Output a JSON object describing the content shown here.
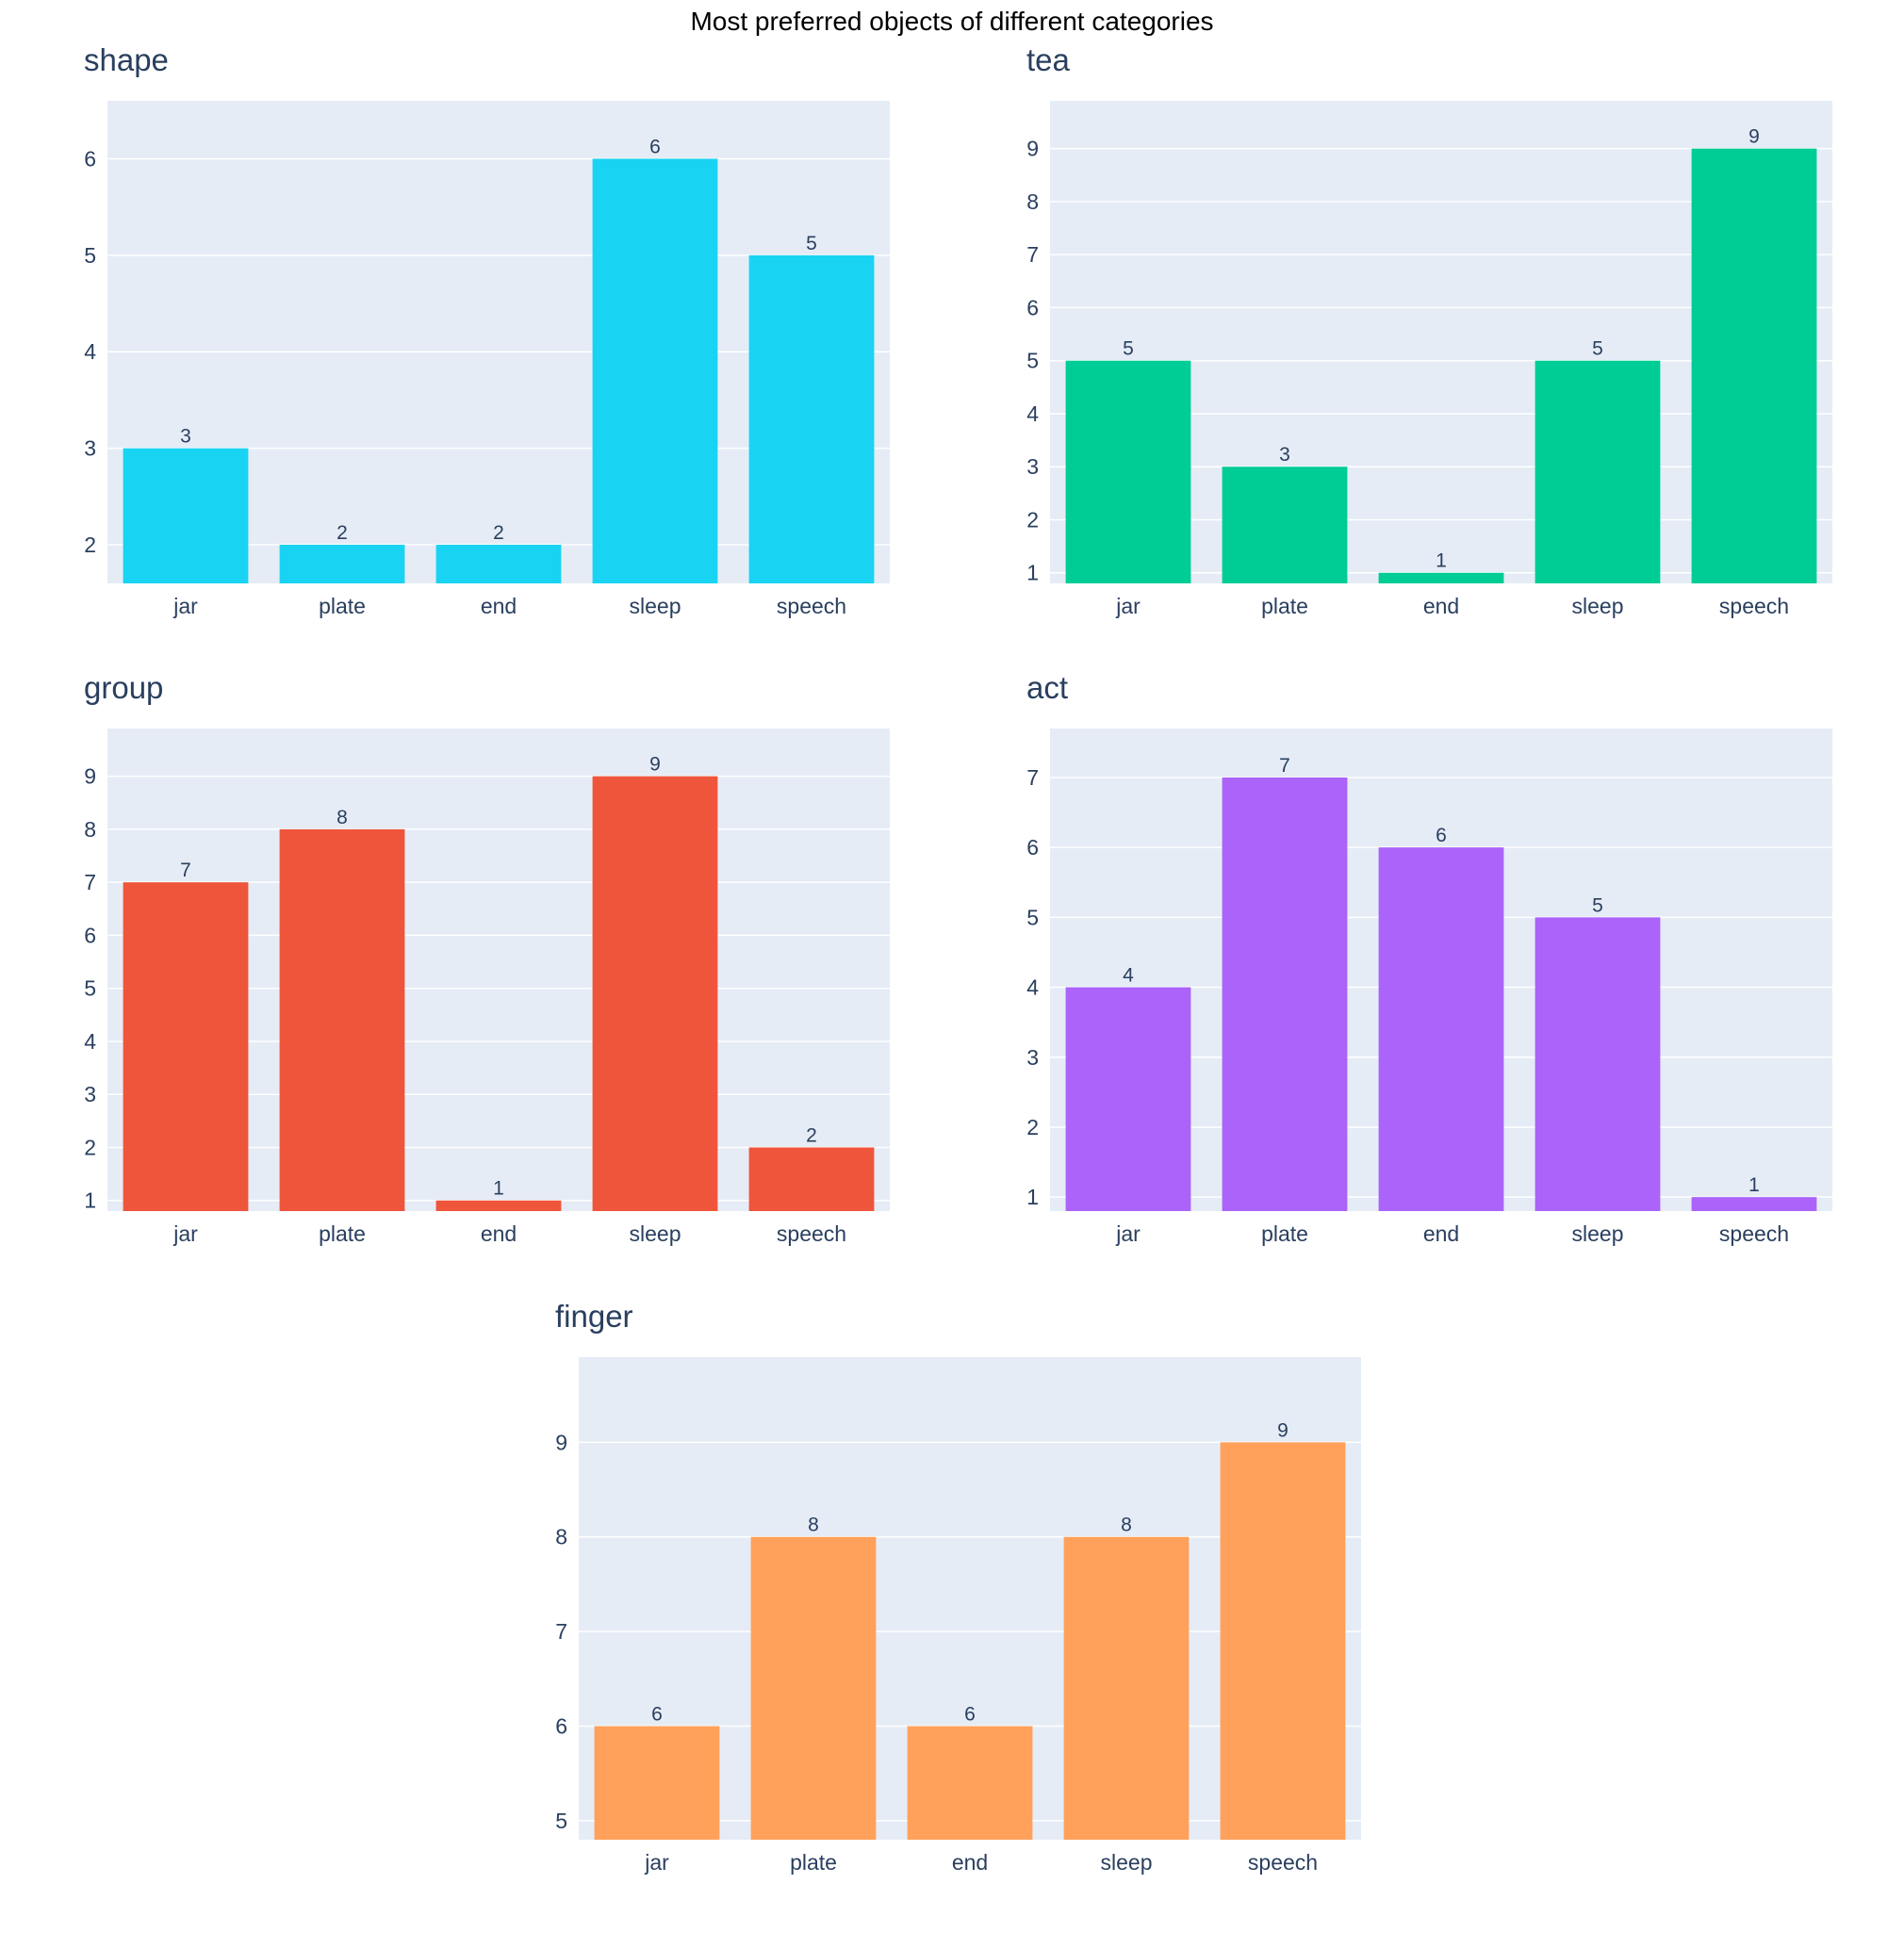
{
  "title": "Most preferred objects of different categories",
  "colors": {
    "plot_bg": "#e5ecf6",
    "grid": "#ffffff",
    "text": "#2a3f5f"
  },
  "chart_data": [
    {
      "type": "bar",
      "title": "shape",
      "categories": [
        "jar",
        "plate",
        "end",
        "sleep",
        "speech"
      ],
      "values": [
        3,
        2,
        2,
        6,
        5
      ],
      "ylim": [
        1.6,
        6.6
      ],
      "yticks": [
        2,
        3,
        4,
        5,
        6
      ],
      "color": "#19d3f3",
      "grid": true
    },
    {
      "type": "bar",
      "title": "tea",
      "categories": [
        "jar",
        "plate",
        "end",
        "sleep",
        "speech"
      ],
      "values": [
        5,
        3,
        1,
        5,
        9
      ],
      "ylim": [
        0.8,
        9.9
      ],
      "yticks": [
        1,
        2,
        3,
        4,
        5,
        6,
        7,
        8,
        9
      ],
      "color": "#00cc96",
      "grid": true
    },
    {
      "type": "bar",
      "title": "group",
      "categories": [
        "jar",
        "plate",
        "end",
        "sleep",
        "speech"
      ],
      "values": [
        7,
        8,
        1,
        9,
        2
      ],
      "ylim": [
        0.8,
        9.9
      ],
      "yticks": [
        1,
        2,
        3,
        4,
        5,
        6,
        7,
        8,
        9
      ],
      "color": "#ef553b",
      "grid": true
    },
    {
      "type": "bar",
      "title": "act",
      "categories": [
        "jar",
        "plate",
        "end",
        "sleep",
        "speech"
      ],
      "values": [
        4,
        7,
        6,
        5,
        1
      ],
      "ylim": [
        0.8,
        7.7
      ],
      "yticks": [
        1,
        2,
        3,
        4,
        5,
        6,
        7
      ],
      "color": "#ab63fa",
      "grid": true
    },
    {
      "type": "bar",
      "title": "finger",
      "categories": [
        "jar",
        "plate",
        "end",
        "sleep",
        "speech"
      ],
      "values": [
        6,
        8,
        6,
        8,
        9
      ],
      "ylim": [
        4.8,
        9.9
      ],
      "yticks": [
        5,
        6,
        7,
        8,
        9
      ],
      "color": "#ffa15a",
      "grid": true
    }
  ]
}
